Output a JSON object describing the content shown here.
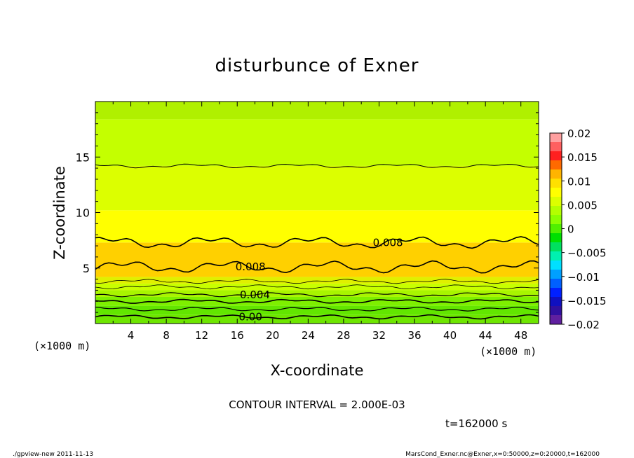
{
  "chart_data": {
    "type": "heatmap",
    "title": "disturbunce of Exner",
    "xlabel": "X-coordinate",
    "ylabel": "Z-coordinate",
    "x_unit_label": "(×1000 m)",
    "y_unit_label": "(×1000 m)",
    "xlim": [
      0,
      50
    ],
    "ylim": [
      0,
      20
    ],
    "x_ticks": [
      "4",
      "8",
      "12",
      "16",
      "20",
      "24",
      "28",
      "32",
      "36",
      "40",
      "44",
      "48"
    ],
    "y_ticks": [
      "5",
      "10",
      "15"
    ],
    "contour_interval_text": "CONTOUR INTERVAL = 2.000E-03",
    "time_text": "t=162000 s",
    "contour_labels": [
      {
        "text": "0.008",
        "x": 33,
        "z": 7.3
      },
      {
        "text": "0.008",
        "x": 17.5,
        "z": 5.1
      },
      {
        "text": "0.004",
        "x": 18,
        "z": 2.6
      },
      {
        "text": "0.00",
        "x": 17.5,
        "z": 0.6
      }
    ],
    "colorbar": {
      "tick_labels": [
        "0.02",
        "0.015",
        "0.01",
        "0.005",
        "0",
        "−0.005",
        "−0.01",
        "−0.015",
        "−0.02"
      ],
      "levels": [
        0.02,
        0.015,
        0.01,
        0.005,
        0,
        -0.005,
        -0.01,
        -0.015,
        -0.02
      ],
      "colors": [
        "#ffa0a0",
        "#ff6060",
        "#ff2020",
        "#ff6a00",
        "#ffb400",
        "#ffe000",
        "#ffff00",
        "#dcff00",
        "#b4ff00",
        "#8cff00",
        "#50f000",
        "#00e000",
        "#00e060",
        "#00f0b0",
        "#00e0ff",
        "#00a0ff",
        "#0060ff",
        "#0020ff",
        "#1010c0",
        "#3010a0",
        "#6020a0"
      ]
    },
    "bands": [
      {
        "z_from": 0,
        "z_to": 0.8,
        "color": "#6ee600"
      },
      {
        "z_from": 0.8,
        "z_to": 1.6,
        "color": "#62e600"
      },
      {
        "z_from": 1.6,
        "z_to": 2.4,
        "color": "#7ef000"
      },
      {
        "z_from": 2.4,
        "z_to": 3.0,
        "color": "#a8f500"
      },
      {
        "z_from": 3.0,
        "z_to": 3.6,
        "color": "#c8ff00"
      },
      {
        "z_from": 3.6,
        "z_to": 4.2,
        "color": "#e0f000"
      },
      {
        "z_from": 4.2,
        "z_to": 7.3,
        "color": "#ffd000"
      },
      {
        "z_from": 7.3,
        "z_to": 10.2,
        "color": "#ffff00"
      },
      {
        "z_from": 10.2,
        "z_to": 14.2,
        "color": "#dcff00"
      },
      {
        "z_from": 14.2,
        "z_to": 18.4,
        "color": "#c4ff00"
      },
      {
        "z_from": 18.4,
        "z_to": 20,
        "color": "#b0f000"
      }
    ]
  },
  "footer": {
    "left": "./gpview-new  2011-11-13",
    "right": "MarsCond_Exner.nc@Exner,x=0:50000,z=0:20000,t=162000"
  }
}
